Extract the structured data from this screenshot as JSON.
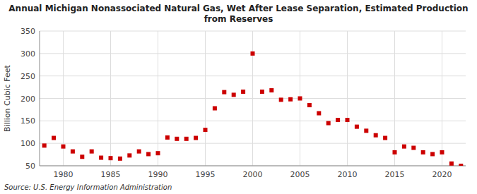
{
  "chart_data": {
    "type": "scatter",
    "title": "Annual Michigan Nonassociated Natural Gas, Wet After Lease Separation, Estimated Production\nfrom Reserves",
    "y_label": "Billion Cubic Feet",
    "source": "Source: U.S. Energy Information Administration",
    "x": [
      1978,
      1979,
      1980,
      1981,
      1982,
      1983,
      1984,
      1985,
      1986,
      1987,
      1988,
      1989,
      1990,
      1991,
      1992,
      1993,
      1994,
      1995,
      1996,
      1997,
      1998,
      1999,
      2000,
      2001,
      2002,
      2003,
      2004,
      2005,
      2006,
      2007,
      2008,
      2009,
      2010,
      2011,
      2012,
      2013,
      2014,
      2015,
      2016,
      2017,
      2018,
      2019,
      2020,
      2021,
      2022
    ],
    "values": [
      95,
      112,
      93,
      82,
      70,
      82,
      68,
      67,
      66,
      73,
      82,
      76,
      78,
      113,
      110,
      110,
      112,
      130,
      178,
      214,
      208,
      215,
      300,
      215,
      218,
      197,
      198,
      200,
      185,
      167,
      145,
      152,
      152,
      137,
      128,
      118,
      112,
      80,
      93,
      90,
      80,
      76,
      80,
      55,
      50
    ],
    "color": "#cc0000",
    "marker": "square",
    "xlim": [
      1977.5,
      2022.5
    ],
    "xticks": [
      1980,
      1985,
      1990,
      1995,
      2000,
      2005,
      2010,
      2015,
      2020
    ],
    "ylim": [
      50,
      350
    ],
    "yticks": [
      50,
      100,
      150,
      200,
      250,
      300,
      350
    ],
    "grid": true
  }
}
